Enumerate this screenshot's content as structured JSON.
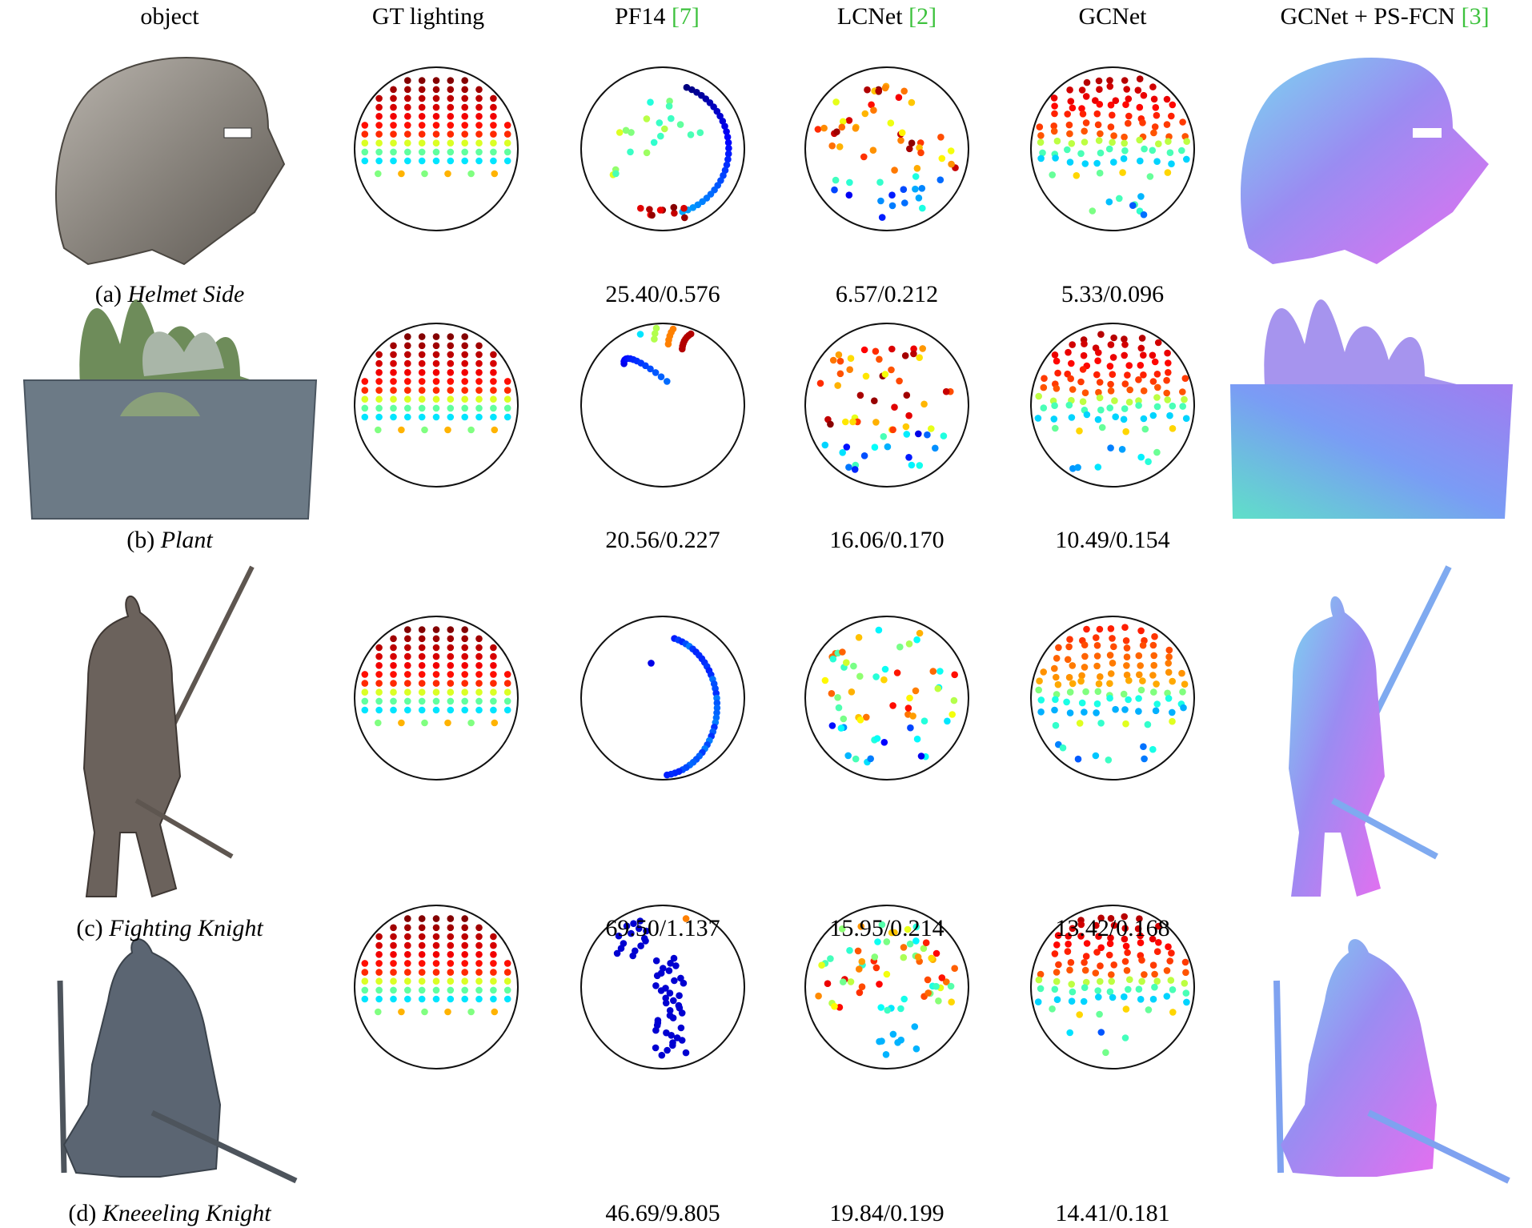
{
  "headers": [
    {
      "text": "object",
      "ref": ""
    },
    {
      "text": "GT lighting",
      "ref": ""
    },
    {
      "text": "PF14 ",
      "ref": "[7]"
    },
    {
      "text": "LCNet ",
      "ref": "[2]"
    },
    {
      "text": "GCNet",
      "ref": ""
    },
    {
      "text": "GCNet + PS-FCN ",
      "ref": "[3]"
    }
  ],
  "rows": [
    {
      "label_prefix": "(a) ",
      "label_name": "Helmet Side",
      "object_icon": "helmet-photo",
      "normal_icon": "helmet-normal-map",
      "object_color": "#8a8580",
      "metrics": [
        "25.40/0.576",
        "6.57/0.212",
        "5.33/0.096"
      ],
      "pf14": "ring-right",
      "lcnet": "mixed-dark",
      "gcnet": "near-gt"
    },
    {
      "label_prefix": "(b) ",
      "label_name": "Plant",
      "object_icon": "plant-photo",
      "normal_icon": "plant-normal-map",
      "object_color": "#6f7f74",
      "metrics": [
        "20.56/0.227",
        "16.06/0.170",
        "10.49/0.154"
      ],
      "pf14": "upper-arcs",
      "lcnet": "mixed-dark",
      "gcnet": "near-gt"
    },
    {
      "label_prefix": "(c) ",
      "label_name": "Fighting Knight",
      "object_icon": "knight-photo",
      "normal_icon": "knight-normal-map",
      "object_color": "#6b625c",
      "metrics": [
        "69.50/1.137",
        "15.95/0.214",
        "13.42/0.168"
      ],
      "pf14": "right-curve",
      "lcnet": "mixed-light",
      "gcnet": "near-gt-light"
    },
    {
      "label_prefix": "(d) ",
      "label_name": "Kneeeling Knight",
      "object_icon": "kneeling-knight-photo",
      "normal_icon": "kneeling-knight-normal-map",
      "object_color": "#5a6470",
      "metrics": [
        "46.69/9.805",
        "19.84/0.199",
        "14.41/0.181"
      ],
      "pf14": "vertical-blue",
      "lcnet": "upper-cluster",
      "gcnet": "near-gt"
    }
  ]
}
